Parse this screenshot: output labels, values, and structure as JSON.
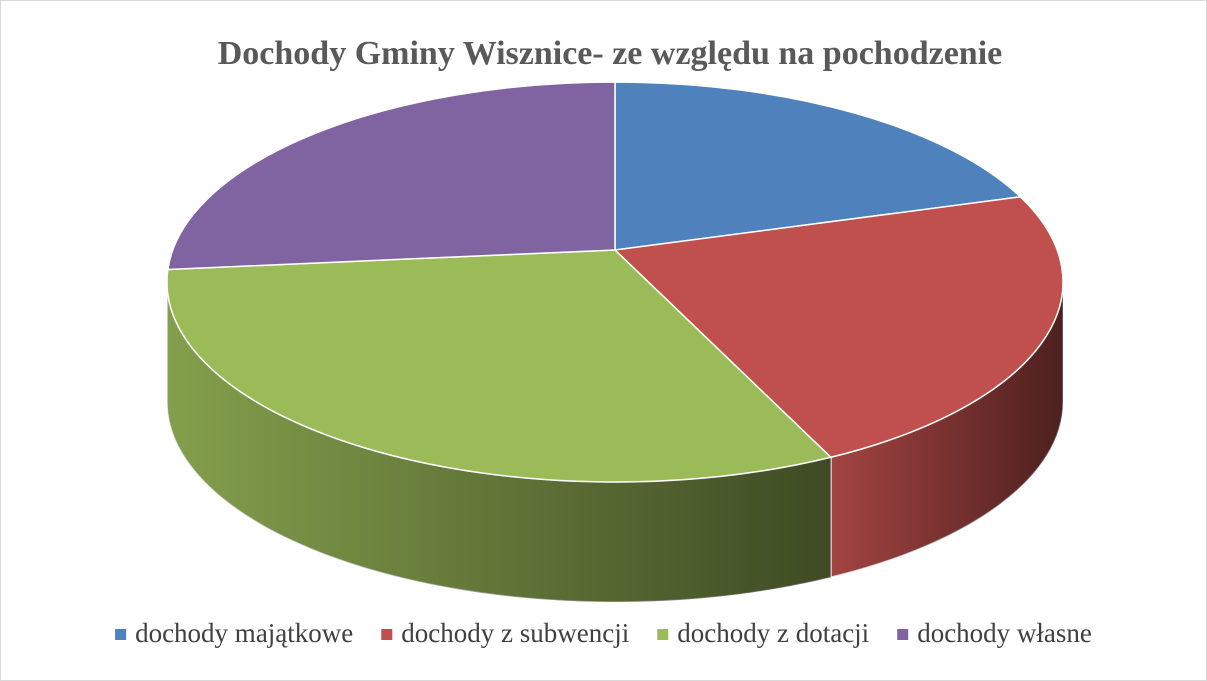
{
  "chart_data": {
    "type": "pie3d",
    "title": "Dochody Gminy Wisznice- ze względu na pochodzenie",
    "categories": [
      "dochody majątkowe",
      "dochody z subwencji",
      "dochody z dotacji",
      "dochody własne"
    ],
    "values": [
      18,
      24,
      34,
      24
    ],
    "colors": [
      "#4f81bd",
      "#c0504d",
      "#9bbb59",
      "#8064a2"
    ],
    "legend": "bottom"
  }
}
